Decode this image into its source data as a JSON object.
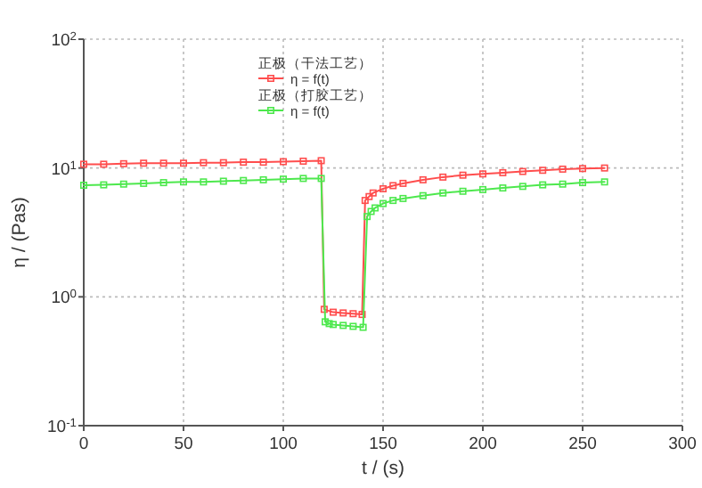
{
  "chart_data": {
    "type": "line",
    "xlabel": "t / (s)",
    "ylabel": "η / (Pas)",
    "log": "y",
    "xlim": [
      0,
      300
    ],
    "xticks": [
      0,
      50,
      100,
      150,
      200,
      250,
      300
    ],
    "ylim": [
      0.1,
      100
    ],
    "yticks": [
      {
        "value": 0.1,
        "label": "10$^{-1}$"
      },
      {
        "value": 1,
        "label": "10$^{0}$"
      },
      {
        "value": 10,
        "label": "10$^{1}$"
      },
      {
        "value": 100,
        "label": "10$^{2}$"
      }
    ],
    "grid": true,
    "legend": "top",
    "marker": "square",
    "line_style": "solid",
    "annotations": [
      "正极（干法工艺）",
      "正极（打胶工艺）"
    ],
    "series": [
      {
        "name": "η = f(t)",
        "color": "#ff4d4d",
        "x": [
          0,
          10,
          20,
          30,
          40,
          50,
          60,
          70,
          80,
          90,
          100,
          110,
          119,
          120.5,
          125,
          130,
          135,
          139.5,
          141,
          143,
          145,
          150,
          155,
          160,
          170,
          180,
          190,
          200,
          210,
          220,
          230,
          240,
          250,
          261
        ],
        "values": [
          10.7,
          10.7,
          10.8,
          10.9,
          10.9,
          10.9,
          11.0,
          11.0,
          11.1,
          11.1,
          11.2,
          11.3,
          11.4,
          0.8,
          0.76,
          0.75,
          0.74,
          0.73,
          5.6,
          6.0,
          6.4,
          6.9,
          7.3,
          7.6,
          8.1,
          8.5,
          8.8,
          9.0,
          9.2,
          9.4,
          9.6,
          9.8,
          9.9,
          10.0
        ]
      },
      {
        "name": "η = f(t)",
        "color": "#4de84d",
        "x": [
          0,
          10,
          20,
          30,
          40,
          50,
          60,
          70,
          80,
          90,
          100,
          110,
          119,
          121,
          123,
          125,
          130,
          135,
          140,
          142,
          144,
          146,
          150,
          155,
          160,
          170,
          180,
          190,
          200,
          210,
          220,
          230,
          240,
          250,
          261
        ],
        "values": [
          7.35,
          7.4,
          7.5,
          7.6,
          7.7,
          7.8,
          7.8,
          7.9,
          8.0,
          8.1,
          8.2,
          8.3,
          8.3,
          0.64,
          0.62,
          0.61,
          0.6,
          0.59,
          0.58,
          4.2,
          4.6,
          4.9,
          5.3,
          5.6,
          5.8,
          6.1,
          6.4,
          6.6,
          6.8,
          7.0,
          7.2,
          7.4,
          7.5,
          7.7,
          7.8
        ]
      }
    ]
  }
}
